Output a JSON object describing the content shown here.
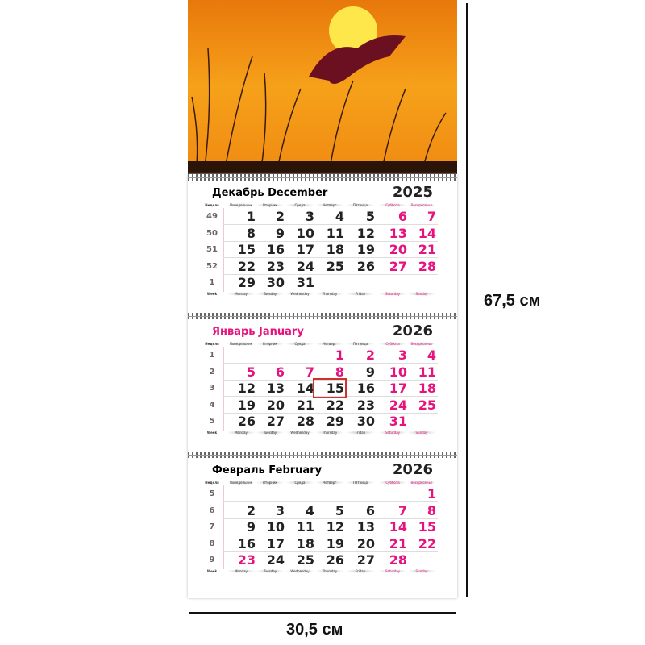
{
  "dimensions": {
    "height_label": "67,5 см",
    "width_label": "30,5 см"
  },
  "colors": {
    "weekend": "#e6137f",
    "today_box": "#d0312d",
    "sky": "#f08a12"
  },
  "day_labels_ru": [
    "Неделя",
    "Понедельник",
    "Вторник",
    "Среда",
    "Четверг",
    "Пятница",
    "Суббота",
    "Воскресенье"
  ],
  "day_labels_en": [
    "Week",
    "Monday",
    "Tuesday",
    "Wednesday",
    "Thursday",
    "Friday",
    "Saturday",
    "Sunday"
  ],
  "months": [
    {
      "title": "Декабрь December",
      "year": "2025",
      "title_pink": false,
      "weeks": [
        [
          "49",
          "1",
          "2",
          "3",
          "4",
          "5",
          "6",
          "7"
        ],
        [
          "50",
          "8",
          "9",
          "10",
          "11",
          "12",
          "13",
          "14"
        ],
        [
          "51",
          "15",
          "16",
          "17",
          "18",
          "19",
          "20",
          "21"
        ],
        [
          "52",
          "22",
          "23",
          "24",
          "25",
          "26",
          "27",
          "28"
        ],
        [
          "1",
          "29",
          "30",
          "31",
          "",
          "",
          "",
          ""
        ]
      ],
      "holidays": []
    },
    {
      "title": "Январь January",
      "year": "2026",
      "title_pink": true,
      "weeks": [
        [
          "1",
          "",
          "",
          "",
          "1",
          "2",
          "3",
          "4"
        ],
        [
          "2",
          "5",
          "6",
          "7",
          "8",
          "9",
          "10",
          "11"
        ],
        [
          "3",
          "12",
          "13",
          "14",
          "15",
          "16",
          "17",
          "18"
        ],
        [
          "4",
          "19",
          "20",
          "21",
          "22",
          "23",
          "24",
          "25"
        ],
        [
          "5",
          "26",
          "27",
          "28",
          "29",
          "30",
          "31",
          ""
        ]
      ],
      "holidays": [
        "1",
        "2",
        "5",
        "6",
        "7",
        "8"
      ],
      "today": "15"
    },
    {
      "title": "Февраль February",
      "year": "2026",
      "title_pink": false,
      "weeks": [
        [
          "5",
          "",
          "",
          "",
          "",
          "",
          "",
          "1"
        ],
        [
          "6",
          "2",
          "3",
          "4",
          "5",
          "6",
          "7",
          "8"
        ],
        [
          "7",
          "9",
          "10",
          "11",
          "12",
          "13",
          "14",
          "15"
        ],
        [
          "8",
          "16",
          "17",
          "18",
          "19",
          "20",
          "21",
          "22"
        ],
        [
          "9",
          "23",
          "24",
          "25",
          "26",
          "27",
          "28",
          ""
        ]
      ],
      "holidays": [
        "23"
      ]
    }
  ]
}
